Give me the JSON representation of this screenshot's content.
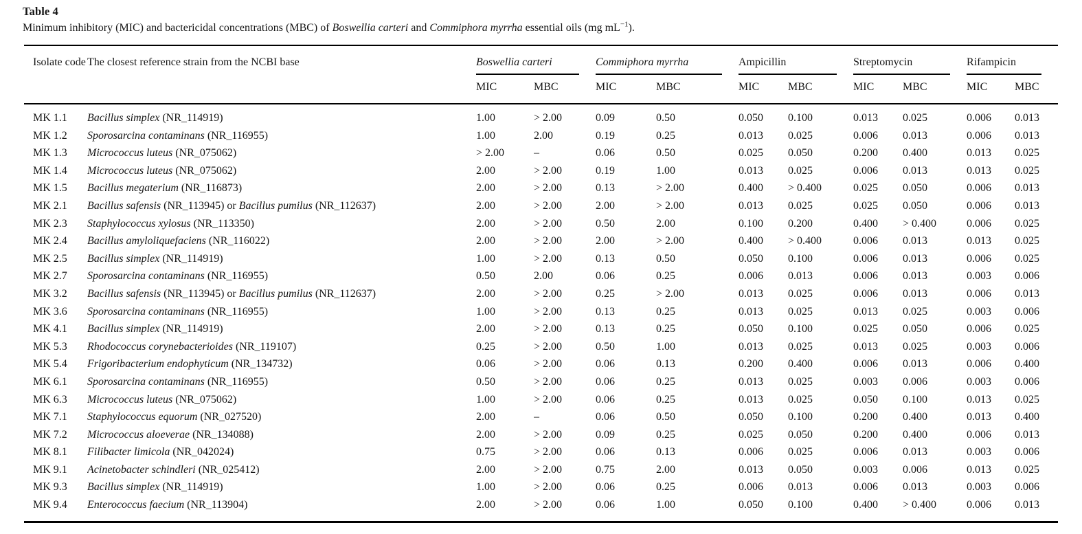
{
  "title": "Table 4",
  "caption": {
    "prefix": "Minimum inhibitory (MIC) and bactericidal concentrations (MBC) of ",
    "species1": "Boswellia carteri",
    "mid": " and ",
    "species2": "Commiphora myrrha",
    "suffix": " essential oils (mg mL",
    "superscript": "−1",
    "end": ")."
  },
  "table": {
    "col_headers": {
      "isolate": "Isolate code",
      "strain": "The closest reference strain from the NCBI base"
    },
    "groups": [
      {
        "label": "Boswellia carteri",
        "italic": true
      },
      {
        "label": "Commiphora myrrha",
        "italic": true
      },
      {
        "label": "Ampicillin",
        "italic": false
      },
      {
        "label": "Streptomycin",
        "italic": false
      },
      {
        "label": "Rifampicin",
        "italic": false
      }
    ],
    "subheaders": [
      "MIC",
      "MBC"
    ],
    "rows": [
      {
        "code": "MK 1.1",
        "strain": [
          {
            "t": "Bacillus simplex",
            "i": true
          },
          {
            "t": " (NR_114919)",
            "i": false
          }
        ],
        "values": [
          "1.00",
          "> 2.00",
          "0.09",
          "0.50",
          "0.050",
          "0.100",
          "0.013",
          "0.025",
          "0.006",
          "0.013"
        ]
      },
      {
        "code": "MK 1.2",
        "strain": [
          {
            "t": "Sporosarcina contaminans",
            "i": true
          },
          {
            "t": " (NR_116955)",
            "i": false
          }
        ],
        "values": [
          "1.00",
          "2.00",
          "0.19",
          "0.25",
          "0.013",
          "0.025",
          "0.006",
          "0.013",
          "0.006",
          "0.013"
        ]
      },
      {
        "code": "MK 1.3",
        "strain": [
          {
            "t": "Micrococcus luteus",
            "i": true
          },
          {
            "t": " (NR_075062)",
            "i": false
          }
        ],
        "values": [
          "> 2.00",
          "–",
          "0.06",
          "0.50",
          "0.025",
          "0.050",
          "0.200",
          "0.400",
          "0.013",
          "0.025"
        ]
      },
      {
        "code": "MK 1.4",
        "strain": [
          {
            "t": "Micrococcus luteus",
            "i": true
          },
          {
            "t": " (NR_075062)",
            "i": false
          }
        ],
        "values": [
          "2.00",
          "> 2.00",
          "0.19",
          "1.00",
          "0.013",
          "0.025",
          "0.006",
          "0.013",
          "0.013",
          "0.025"
        ]
      },
      {
        "code": "MK 1.5",
        "strain": [
          {
            "t": "Bacillus megaterium",
            "i": true
          },
          {
            "t": " (NR_116873)",
            "i": false
          }
        ],
        "values": [
          "2.00",
          "> 2.00",
          "0.13",
          "> 2.00",
          "0.400",
          "> 0.400",
          "0.025",
          "0.050",
          "0.006",
          "0.013"
        ]
      },
      {
        "code": "MK 2.1",
        "strain": [
          {
            "t": "Bacillus safensis",
            "i": true
          },
          {
            "t": " (NR_113945) or ",
            "i": false
          },
          {
            "t": "Bacillus pumilus",
            "i": true
          },
          {
            "t": " (NR_112637)",
            "i": false
          }
        ],
        "values": [
          "2.00",
          "> 2.00",
          "2.00",
          "> 2.00",
          "0.013",
          "0.025",
          "0.025",
          "0.050",
          "0.006",
          "0.013"
        ]
      },
      {
        "code": "MK 2.3",
        "strain": [
          {
            "t": "Staphylococcus xylosus",
            "i": true
          },
          {
            "t": " (NR_113350)",
            "i": false
          }
        ],
        "values": [
          "2.00",
          "> 2.00",
          "0.50",
          "2.00",
          "0.100",
          "0.200",
          "0.400",
          "> 0.400",
          "0.006",
          "0.025"
        ]
      },
      {
        "code": "MK 2.4",
        "strain": [
          {
            "t": "Bacillus amyloliquefaciens",
            "i": true
          },
          {
            "t": " (NR_116022)",
            "i": false
          }
        ],
        "values": [
          "2.00",
          "> 2.00",
          "2.00",
          "> 2.00",
          "0.400",
          "> 0.400",
          "0.006",
          "0.013",
          "0.013",
          "0.025"
        ]
      },
      {
        "code": "MK 2.5",
        "strain": [
          {
            "t": "Bacillus simplex",
            "i": true
          },
          {
            "t": " (NR_114919)",
            "i": false
          }
        ],
        "values": [
          "1.00",
          "> 2.00",
          "0.13",
          "0.50",
          "0.050",
          "0.100",
          "0.006",
          "0.013",
          "0.006",
          "0.025"
        ]
      },
      {
        "code": "MK 2.7",
        "strain": [
          {
            "t": "Sporosarcina contaminans",
            "i": true
          },
          {
            "t": " (NR_116955)",
            "i": false
          }
        ],
        "values": [
          "0.50",
          "2.00",
          "0.06",
          "0.25",
          "0.006",
          "0.013",
          "0.006",
          "0.013",
          "0.003",
          "0.006"
        ]
      },
      {
        "code": "MK 3.2",
        "strain": [
          {
            "t": "Bacillus safensis",
            "i": true
          },
          {
            "t": " (NR_113945) or ",
            "i": false
          },
          {
            "t": "Bacillus pumilus",
            "i": true
          },
          {
            "t": " (NR_112637)",
            "i": false
          }
        ],
        "values": [
          "2.00",
          "> 2.00",
          "0.25",
          "> 2.00",
          "0.013",
          "0.025",
          "0.006",
          "0.013",
          "0.006",
          "0.013"
        ]
      },
      {
        "code": "MK 3.6",
        "strain": [
          {
            "t": "Sporosarcina contaminans",
            "i": true
          },
          {
            "t": " (NR_116955)",
            "i": false
          }
        ],
        "values": [
          "1.00",
          "> 2.00",
          "0.13",
          "0.25",
          "0.013",
          "0.025",
          "0.013",
          "0.025",
          "0.003",
          "0.006"
        ]
      },
      {
        "code": "MK 4.1",
        "strain": [
          {
            "t": "Bacillus simplex",
            "i": true
          },
          {
            "t": " (NR_114919)",
            "i": false
          }
        ],
        "values": [
          "2.00",
          "> 2.00",
          "0.13",
          "0.25",
          "0.050",
          "0.100",
          "0.025",
          "0.050",
          "0.006",
          "0.025"
        ]
      },
      {
        "code": "MK 5.3",
        "strain": [
          {
            "t": "Rhodococcus corynebacterioides",
            "i": true
          },
          {
            "t": " (NR_119107)",
            "i": false
          }
        ],
        "values": [
          "0.25",
          "> 2.00",
          "0.50",
          "1.00",
          "0.013",
          "0.025",
          "0.013",
          "0.025",
          "0.003",
          "0.006"
        ]
      },
      {
        "code": "MK 5.4",
        "strain": [
          {
            "t": "Frigoribacterium endophyticum",
            "i": true
          },
          {
            "t": " (NR_134732)",
            "i": false
          }
        ],
        "values": [
          "0.06",
          "> 2.00",
          "0.06",
          "0.13",
          "0.200",
          "0.400",
          "0.006",
          "0.013",
          "0.006",
          "0.400"
        ]
      },
      {
        "code": "MK 6.1",
        "strain": [
          {
            "t": "Sporosarcina contaminans",
            "i": true
          },
          {
            "t": " (NR_116955)",
            "i": false
          }
        ],
        "values": [
          "0.50",
          "> 2.00",
          "0.06",
          "0.25",
          "0.013",
          "0.025",
          "0.003",
          "0.006",
          "0.003",
          "0.006"
        ]
      },
      {
        "code": "MK 6.3",
        "strain": [
          {
            "t": "Micrococcus luteus",
            "i": true
          },
          {
            "t": " (NR_075062)",
            "i": false
          }
        ],
        "values": [
          "1.00",
          "> 2.00",
          "0.06",
          "0.25",
          "0.013",
          "0.025",
          "0.050",
          "0.100",
          "0.013",
          "0.025"
        ]
      },
      {
        "code": "MK 7.1",
        "strain": [
          {
            "t": "Staphylococcus equorum",
            "i": true
          },
          {
            "t": " (NR_027520)",
            "i": false
          }
        ],
        "values": [
          "2.00",
          "–",
          "0.06",
          "0.50",
          "0.050",
          "0.100",
          "0.200",
          "0.400",
          "0.013",
          "0.400"
        ]
      },
      {
        "code": "MK 7.2",
        "strain": [
          {
            "t": "Micrococcus aloeverae",
            "i": true
          },
          {
            "t": " (NR_134088)",
            "i": false
          }
        ],
        "values": [
          "2.00",
          "> 2.00",
          "0.09",
          "0.25",
          "0.025",
          "0.050",
          "0.200",
          "0.400",
          "0.006",
          "0.013"
        ]
      },
      {
        "code": "MK 8.1",
        "strain": [
          {
            "t": "Filibacter limicola",
            "i": true
          },
          {
            "t": " (NR_042024)",
            "i": false
          }
        ],
        "values": [
          "0.75",
          "> 2.00",
          "0.06",
          "0.13",
          "0.006",
          "0.025",
          "0.006",
          "0.013",
          "0.003",
          "0.006"
        ]
      },
      {
        "code": "MK 9.1",
        "strain": [
          {
            "t": "Acinetobacter schindleri",
            "i": true
          },
          {
            "t": " (NR_025412)",
            "i": false
          }
        ],
        "values": [
          "2.00",
          "> 2.00",
          "0.75",
          "2.00",
          "0.013",
          "0.050",
          "0.003",
          "0.006",
          "0.013",
          "0.025"
        ]
      },
      {
        "code": "MK 9.3",
        "strain": [
          {
            "t": "Bacillus simplex",
            "i": true
          },
          {
            "t": " (NR_114919)",
            "i": false
          }
        ],
        "values": [
          "1.00",
          "> 2.00",
          "0.06",
          "0.25",
          "0.006",
          "0.013",
          "0.006",
          "0.013",
          "0.003",
          "0.006"
        ]
      },
      {
        "code": "MK 9.4",
        "strain": [
          {
            "t": "Enterococcus faecium",
            "i": true
          },
          {
            "t": " (NR_113904)",
            "i": false
          }
        ],
        "values": [
          "2.00",
          "> 2.00",
          "0.06",
          "1.00",
          "0.050",
          "0.100",
          "0.400",
          "> 0.400",
          "0.006",
          "0.013"
        ]
      }
    ]
  }
}
